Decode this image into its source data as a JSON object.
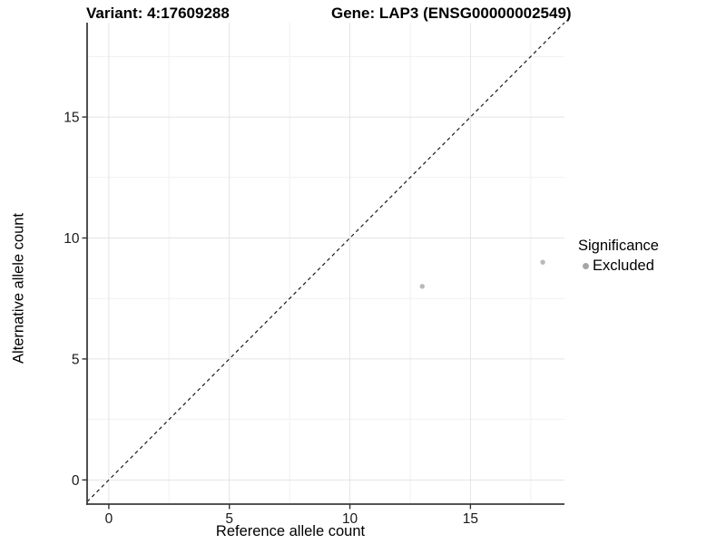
{
  "chart_data": {
    "type": "scatter",
    "title_left": "Variant: 4:17609288",
    "title_right": "Gene: LAP3 (ENSG00000002549)",
    "xlabel": "Reference allele count",
    "ylabel": "Alternative allele count",
    "xlim": [
      -0.9,
      18.9
    ],
    "ylim": [
      -1.0,
      18.9
    ],
    "x_major_ticks": [
      0,
      5,
      10,
      15
    ],
    "x_minor_ticks": [
      2.5,
      7.5,
      12.5,
      17.5
    ],
    "y_major_ticks": [
      0,
      5,
      10,
      15
    ],
    "y_minor_ticks": [
      2.5,
      7.5,
      12.5,
      17.5
    ],
    "grid": true,
    "reference_line": {
      "type": "identity y=x",
      "style": "dashed",
      "color": "#1a1a1a"
    },
    "series": [
      {
        "name": "Excluded",
        "color": "#b9b9b9",
        "points": [
          {
            "x": 13,
            "y": 8
          },
          {
            "x": 18,
            "y": 9
          }
        ]
      }
    ],
    "legend": {
      "title": "Significance",
      "position": "right",
      "items": [
        {
          "label": "Excluded",
          "color": "#a6a6a6"
        }
      ]
    },
    "colors": {
      "background": "#ffffff",
      "grid_major": "#e4e4e4",
      "grid_minor": "#f1f1f1",
      "axis_line": "#3c3c3c",
      "tick_mark": "#333333",
      "tick_label": "#1a1a1a"
    }
  }
}
